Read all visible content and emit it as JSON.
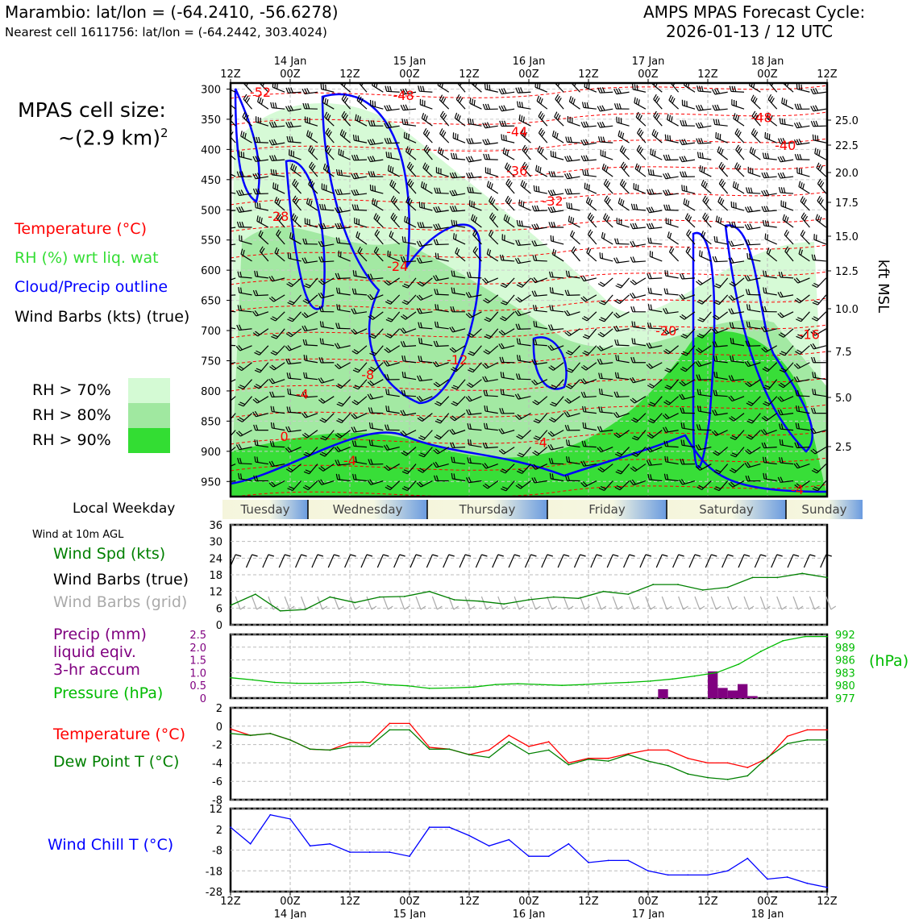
{
  "header": {
    "station_line": "Marambio: lat/lon = (-64.2410, -56.6278)",
    "cell_line": "Nearest cell 1611756: lat/lon = (-64.2442, 303.4024)",
    "forecast_title": "AMPS MPAS Forecast Cycle:",
    "forecast_cycle": "2026-01-13 / 12 UTC"
  },
  "side": {
    "cell_size_label": "MPAS cell size:",
    "cell_size_value": "~(2.9 km)",
    "cell_size_exp": "2",
    "legend_temperature": "Temperature (°C)",
    "legend_rh": "RH (%) wrt liq. wat",
    "legend_cloud": "Cloud/Precip outline",
    "legend_wind": "Wind Barbs (kts) (true)",
    "rh70": "RH > 70%",
    "rh80": "RH > 80%",
    "rh90": "RH > 90%",
    "local_weekday": "Local Weekday",
    "wind_10m": "Wind at 10m AGL",
    "wind_spd": "Wind Spd (kts)",
    "wind_barbs_true": "Wind Barbs (true)",
    "wind_barbs_grid": "Wind Barbs (grid)",
    "precip1": "Precip (mm)",
    "precip2": "liquid eqiv.",
    "precip3": "3-hr accum",
    "pressure": "Pressure (hPa)",
    "temp": "Temperature (°C)",
    "dewpoint": "Dew Point T (°C)",
    "windchill": "Wind Chill T (°C)"
  },
  "colors": {
    "temperature": "#ff0000",
    "rh": "#33dd33",
    "cloud": "#0000ff",
    "wind": "#000000",
    "wind_grid": "#aaaaaa",
    "wind_spd": "#008000",
    "precip": "#800080",
    "pressure": "#00bb00",
    "dewpoint": "#008000",
    "windchill": "#0000ff",
    "rh70": "#d4fad4",
    "rh80": "#a0e8a0",
    "rh90": "#33dd33"
  },
  "chart_data": [
    {
      "type": "heatmap",
      "name": "cross-section",
      "x_tick_labels_top": [
        "12Z",
        "00Z",
        "12Z",
        "00Z",
        "12Z",
        "00Z",
        "12Z",
        "00Z",
        "12Z",
        "00Z",
        "12Z"
      ],
      "date_labels": [
        "14 Jan",
        "15 Jan",
        "16 Jan",
        "17 Jan",
        "18 Jan"
      ],
      "y_left_ticks_hPa": [
        300,
        350,
        400,
        450,
        500,
        550,
        600,
        650,
        700,
        750,
        800,
        850,
        900,
        950
      ],
      "y_right_ticks_kft": [
        "25.0",
        "22.5",
        "20.0",
        "17.5",
        "15.0",
        "12.5",
        "10.0",
        "7.5",
        "5.0",
        "2.5"
      ],
      "y_right_label": "kft MSL",
      "temperature_contour_labels": [
        {
          "text": "-52",
          "x": 0.05,
          "p": 305
        },
        {
          "text": "-48",
          "x": 0.29,
          "p": 310
        },
        {
          "text": "-48",
          "x": 0.89,
          "p": 347
        },
        {
          "text": "-44",
          "x": 0.48,
          "p": 370
        },
        {
          "text": "-40",
          "x": 0.93,
          "p": 393
        },
        {
          "text": "-36",
          "x": 0.48,
          "p": 435
        },
        {
          "text": "-32",
          "x": 0.54,
          "p": 485
        },
        {
          "text": "-28",
          "x": 0.08,
          "p": 510
        },
        {
          "text": "-24",
          "x": 0.28,
          "p": 593
        },
        {
          "text": "-20",
          "x": 0.73,
          "p": 700
        },
        {
          "text": "-16",
          "x": 0.97,
          "p": 706
        },
        {
          "text": "-12",
          "x": 0.38,
          "p": 748
        },
        {
          "text": "-8",
          "x": 0.23,
          "p": 773
        },
        {
          "text": "-4",
          "x": 0.12,
          "p": 805
        },
        {
          "text": "0",
          "x": 0.09,
          "p": 875
        },
        {
          "text": "-4",
          "x": 0.2,
          "p": 915
        },
        {
          "text": "-4",
          "x": 0.52,
          "p": 885
        },
        {
          "text": "-4",
          "x": 0.95,
          "p": 963
        }
      ]
    },
    {
      "type": "line",
      "name": "wind-speed",
      "yticks": [
        0,
        6,
        12,
        18,
        24,
        30,
        36
      ],
      "ylim": [
        0,
        36
      ],
      "x_hours": [
        0,
        6,
        12,
        18,
        24,
        30,
        36,
        42,
        48,
        54,
        60,
        66,
        72,
        78,
        84,
        90,
        96,
        102,
        108,
        114,
        120,
        126,
        132,
        138,
        144
      ],
      "values": [
        7,
        11,
        5,
        5.5,
        10,
        8,
        10,
        10.2,
        12,
        9,
        8.5,
        7.5,
        9,
        10,
        9.5,
        12,
        11,
        14.5,
        14.5,
        12.5,
        13.5,
        17,
        17,
        18.5,
        17
      ]
    },
    {
      "type": "bar",
      "name": "precip-pressure",
      "precip_yticks": [
        "0",
        "0.5",
        "1.0",
        "1.5",
        "2.0",
        "2.5"
      ],
      "pressure_yticks": [
        "977",
        "980",
        "983",
        "986",
        "989",
        "992"
      ],
      "pressure_unit": "(hPa)",
      "precip_bars": [
        {
          "h": 129,
          "mm": 0.35
        },
        {
          "h": 144,
          "mm": 1.05
        },
        {
          "h": 147,
          "mm": 0.4
        },
        {
          "h": 150,
          "mm": 0.3
        },
        {
          "h": 153,
          "mm": 0.55
        },
        {
          "h": 156,
          "mm": 0.08
        }
      ],
      "pressure_hPa": [
        981.8,
        981.3,
        980.7,
        980.5,
        980.5,
        980.6,
        980.8,
        980.2,
        979.9,
        979.3,
        979.4,
        979.6,
        980.2,
        980.4,
        980.2,
        980.0,
        980.2,
        980.5,
        980.7,
        981.0,
        981.5,
        982.2,
        983.0,
        985.0,
        988.0,
        990.5,
        991.5,
        991.5
      ]
    },
    {
      "type": "line",
      "name": "temperature-dewpoint",
      "yticks": [
        2,
        0,
        -2,
        -4,
        -6,
        -8
      ],
      "ylim": [
        -8,
        2
      ],
      "x_hours": [
        0,
        6,
        12,
        18,
        24,
        30,
        36,
        42,
        48,
        54,
        60,
        66,
        72,
        78,
        84,
        90,
        96,
        102,
        108,
        114,
        120,
        126,
        132,
        138,
        144,
        150,
        156,
        162,
        168,
        174,
        180
      ],
      "temperature": [
        -0.3,
        -1.0,
        -0.8,
        -1.5,
        -2.5,
        -2.6,
        -1.8,
        -1.8,
        0.3,
        0.3,
        -2.3,
        -2.5,
        -3.1,
        -2.6,
        -1.0,
        -2.2,
        -1.7,
        -4.0,
        -3.5,
        -3.5,
        -3.0,
        -2.6,
        -2.6,
        -3.5,
        -4.0,
        -4.0,
        -4.5,
        -3.5,
        -1.1,
        -0.4,
        -0.4
      ],
      "dewpoint": [
        -0.8,
        -1.0,
        -0.8,
        -1.5,
        -2.5,
        -2.6,
        -2.2,
        -2.2,
        -0.4,
        -0.4,
        -2.5,
        -2.5,
        -3.1,
        -3.4,
        -1.7,
        -3.0,
        -2.6,
        -4.2,
        -3.6,
        -3.8,
        -3.1,
        -3.8,
        -4.3,
        -5.2,
        -5.6,
        -5.8,
        -5.4,
        -3.4,
        -1.9,
        -1.5,
        -1.5
      ]
    },
    {
      "type": "line",
      "name": "wind-chill",
      "yticks": [
        12,
        2,
        -8,
        -18,
        -28
      ],
      "ylim": [
        -28,
        12
      ],
      "x_hours": [
        0,
        6,
        12,
        18,
        24,
        30,
        36,
        42,
        48,
        54,
        60,
        66,
        72,
        78,
        84,
        90,
        96,
        102,
        108,
        114,
        120,
        126,
        132,
        138,
        144,
        150,
        156,
        162,
        168,
        174,
        180
      ],
      "values": [
        3,
        -5,
        9,
        7,
        -6,
        -5,
        -9,
        -9,
        -9,
        -11,
        3,
        3,
        -1,
        -6,
        -3,
        -11,
        -11,
        -5,
        -14,
        -13,
        -13,
        -18,
        -20,
        -20,
        -20,
        -18,
        -12,
        -22,
        -21,
        -24,
        -26
      ]
    }
  ],
  "bottom_axis": {
    "x_tick_labels": [
      "12Z",
      "00Z",
      "12Z",
      "00Z",
      "12Z",
      "00Z",
      "12Z",
      "00Z",
      "12Z",
      "00Z",
      "12Z"
    ],
    "date_labels": [
      "14 Jan",
      "15 Jan",
      "16 Jan",
      "17 Jan",
      "18 Jan"
    ]
  },
  "weekdays": [
    "Tuesday",
    "Wednesday",
    "Thursday",
    "Friday",
    "Saturday",
    "Sunday"
  ]
}
